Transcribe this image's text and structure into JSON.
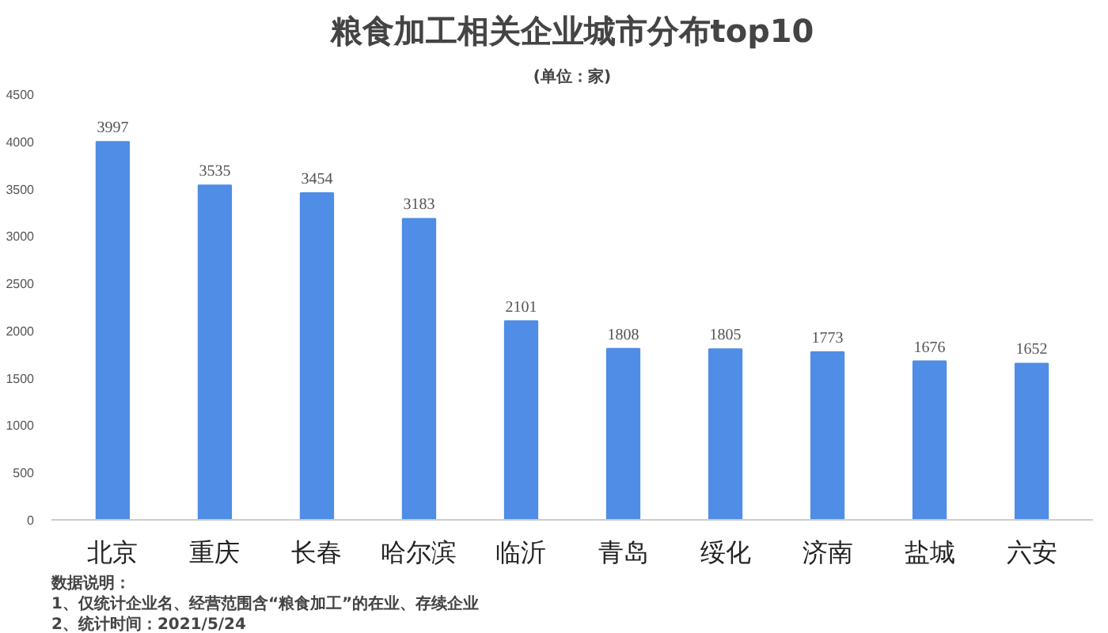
{
  "chart_data": {
    "type": "bar",
    "title": "粮食加工相关企业城市分布top10",
    "subtitle": "(单位：家)",
    "categories": [
      "北京",
      "重庆",
      "长春",
      "哈尔滨",
      "临沂",
      "青岛",
      "绥化",
      "济南",
      "盐城",
      "六安"
    ],
    "values": [
      3997,
      3535,
      3454,
      3183,
      2101,
      1808,
      1805,
      1773,
      1676,
      1652
    ],
    "color": "#4f8de6",
    "ylim": [
      0,
      4500
    ],
    "yticks": [
      0,
      500,
      1000,
      1500,
      2000,
      2500,
      3000,
      3500,
      4000,
      4500
    ],
    "grid": false,
    "data_labels": true,
    "annotations": [
      "数据说明：",
      "1、仅统计企业名、经营范围含“粮食加工”的在业、存续企业",
      "2、统计时间：2021/5/24"
    ]
  }
}
